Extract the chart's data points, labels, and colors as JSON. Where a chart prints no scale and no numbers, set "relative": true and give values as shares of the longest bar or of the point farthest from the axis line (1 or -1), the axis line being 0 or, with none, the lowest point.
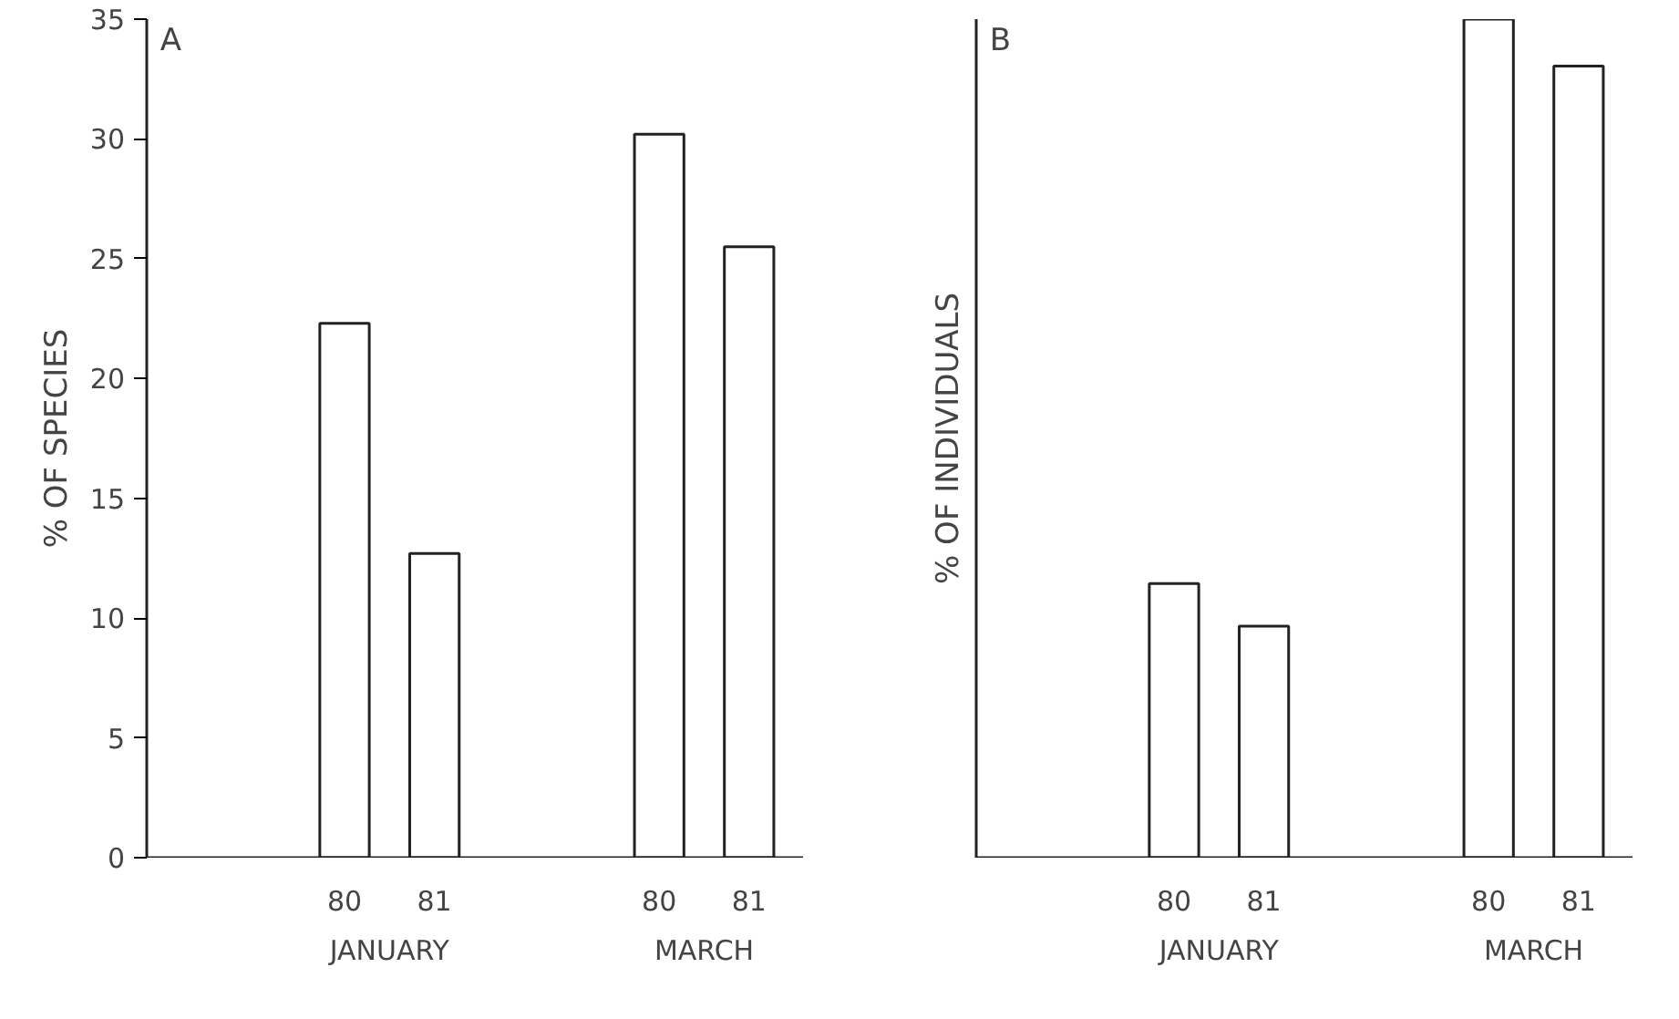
{
  "chart_data": [
    {
      "type": "bar",
      "title": "A",
      "ylabel": "% OF SPECIES",
      "categories": [
        "80",
        "81",
        "80",
        "81"
      ],
      "values": [
        22.3,
        12.7,
        30.2,
        25.5
      ],
      "color": "#ffffff",
      "ylim": [
        0,
        35
      ],
      "yticks": [
        0,
        5,
        10,
        15,
        20,
        25,
        30,
        35
      ],
      "annotations": [
        "JANUARY",
        "MARCH"
      ]
    },
    {
      "type": "bar",
      "title": "B",
      "ylabel": "% OF INDIVIDUALS",
      "categories": [
        "80",
        "81",
        "80",
        "81"
      ],
      "values": [
        0.327,
        0.276,
        1,
        0.944
      ],
      "color": "#ffffff",
      "relative": true,
      "annotations": [
        "JANUARY",
        "MARCH"
      ]
    }
  ]
}
